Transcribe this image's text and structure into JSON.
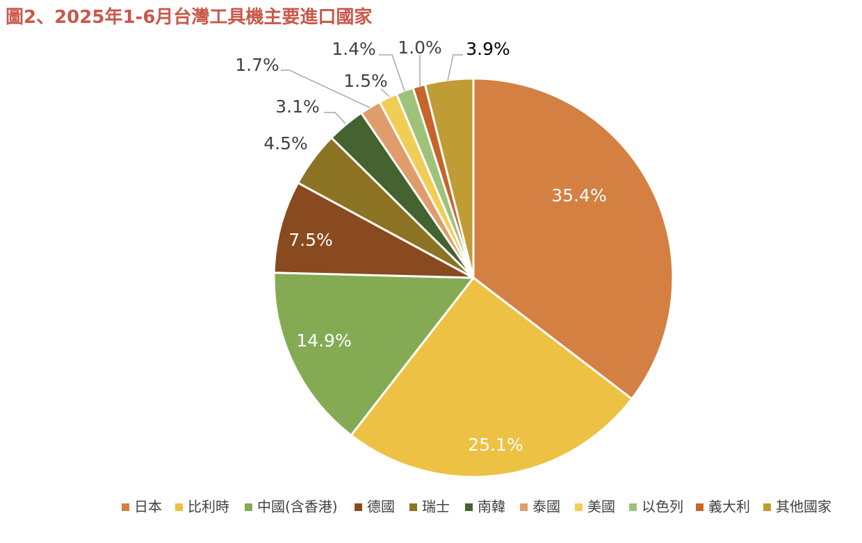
{
  "title": "圖2、2025年1-6月台灣工具機主要進口國家",
  "chart_data": {
    "type": "pie",
    "title": "圖2、2025年1-6月台灣工具機主要進口國家",
    "legend_position": "bottom-right",
    "slices": [
      {
        "name": "日本",
        "value": 35.4,
        "label": "35.4%",
        "color": "#d48043"
      },
      {
        "name": "比利時",
        "value": 25.1,
        "label": "25.1%",
        "color": "#edc244"
      },
      {
        "name": "中國(含香港)",
        "value": 14.9,
        "label": "14.9%",
        "color": "#84ab54"
      },
      {
        "name": "德國",
        "value": 7.5,
        "label": "7.5%",
        "color": "#8a4a1f"
      },
      {
        "name": "瑞士",
        "value": 4.5,
        "label": "4.5%",
        "color": "#8c7323"
      },
      {
        "name": "南韓",
        "value": 3.1,
        "label": "3.1%",
        "color": "#456231"
      },
      {
        "name": "泰國",
        "value": 1.7,
        "label": "1.7%",
        "color": "#e09d6c"
      },
      {
        "name": "美國",
        "value": 1.5,
        "label": "1.5%",
        "color": "#f2cd55"
      },
      {
        "name": "以色列",
        "value": 1.4,
        "label": "1.4%",
        "color": "#9ec27a"
      },
      {
        "name": "義大利",
        "value": 1.0,
        "label": "1.0%",
        "color": "#c5652b"
      },
      {
        "name": "其他國家",
        "value": 3.9,
        "label": "3.9%",
        "color": "#bf9c34"
      }
    ]
  }
}
